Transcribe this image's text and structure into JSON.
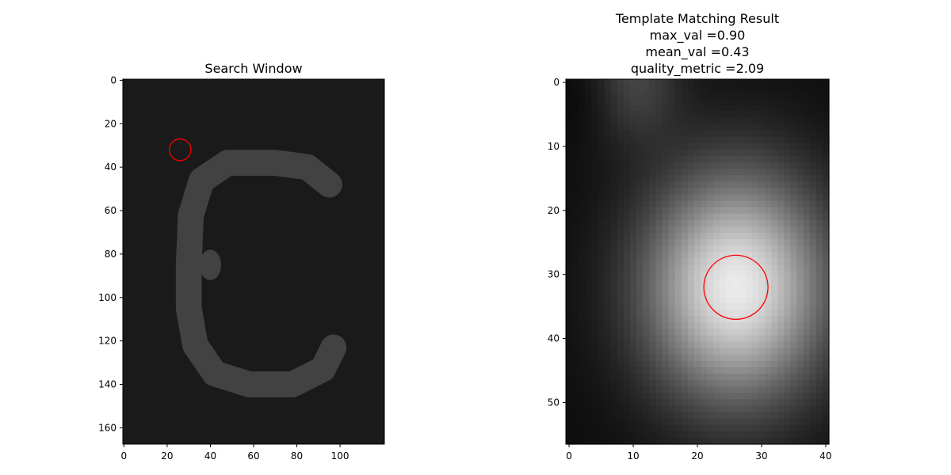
{
  "chart_data": [
    {
      "type": "heatmap",
      "title": "Search Window",
      "colormap": "gray",
      "image_shape": [
        168,
        121
      ],
      "x_ticks": [
        0,
        20,
        40,
        60,
        80,
        100
      ],
      "y_ticks": [
        0,
        20,
        40,
        60,
        80,
        100,
        120,
        140,
        160
      ],
      "xlim": [
        -0.5,
        120.5
      ],
      "ylim": [
        167.5,
        -0.5
      ],
      "background_level": 0.1,
      "shape_level": 0.26,
      "shape_description": "letter E/C shaped brighter stroke",
      "marker": {
        "type": "circle",
        "x": 26,
        "y": 32,
        "radius": 5,
        "color": "#ff0000"
      }
    },
    {
      "type": "heatmap",
      "title_lines": [
        "Template Matching Result",
        "max_val =0.90",
        "mean_val =0.43",
        "quality_metric =2.09"
      ],
      "colormap": "gray",
      "image_shape": [
        57,
        41
      ],
      "x_ticks": [
        0,
        10,
        20,
        30,
        40
      ],
      "y_ticks": [
        0,
        10,
        20,
        30,
        40,
        50
      ],
      "xlim": [
        -0.5,
        40.5
      ],
      "ylim": [
        56.5,
        -0.5
      ],
      "peak": {
        "x": 26,
        "y": 32,
        "value": 0.9
      },
      "secondary_bright": {
        "x": 10,
        "y": 0
      },
      "marker": {
        "type": "circle",
        "x": 26,
        "y": 32,
        "radius": 5,
        "color": "#ff0000"
      }
    }
  ]
}
